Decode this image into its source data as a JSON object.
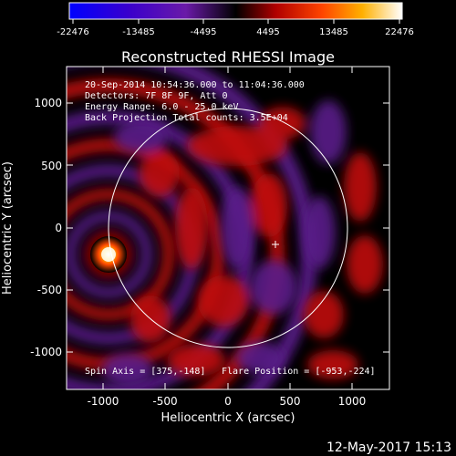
{
  "colorbar": {
    "ticks": [
      "-22476",
      "-13485",
      "-4495",
      "4495",
      "13485",
      "22476"
    ],
    "range": [
      -22476,
      22476
    ]
  },
  "plot": {
    "title": "Reconstructed RHESSI Image",
    "xlabel": "Heliocentric X (arcsec)",
    "ylabel": "Heliocentric Y (arcsec)",
    "xticks": [
      "-1000",
      "-500",
      "0",
      "500",
      "1000"
    ],
    "yticks": [
      "1000",
      "500",
      "0",
      "-500",
      "-1000"
    ],
    "info_lines": [
      "20-Sep-2014 10:54:36.000 to 11:04:36.000",
      "Detectors: 7F 8F 9F, Att 0",
      "Energy Range: 6.0 - 25.0 keV",
      "Back Projection      Total counts: 3.5E+04"
    ],
    "footer_left": "Spin Axis = [375,-148]",
    "footer_right": "Flare Position = [-953,-224]"
  },
  "timestamp": "12-May-2017 15:13",
  "chart_data": {
    "type": "heatmap",
    "title": "Reconstructed RHESSI Image",
    "xlabel": "Heliocentric X (arcsec)",
    "ylabel": "Heliocentric Y (arcsec)",
    "xlim": [
      -1300,
      1300
    ],
    "ylim": [
      -1300,
      1300
    ],
    "colorbar_range": [
      -22476,
      22476
    ],
    "source": {
      "x": -953,
      "y": -224
    },
    "spin_axis": {
      "x": 375,
      "y": -148
    },
    "solar_disk_radius_arcsec": 960
  }
}
